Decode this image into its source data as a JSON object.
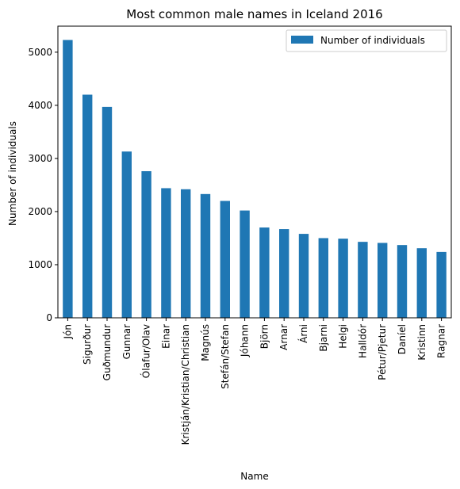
{
  "chart_data": {
    "type": "bar",
    "title": "Most common male names in Iceland 2016",
    "xlabel": "Name",
    "ylabel": "Number of individuals",
    "categories": [
      "Jón",
      "Sigurður",
      "Guðmundur",
      "Gunnar",
      "Ólafur/Olav",
      "Einar",
      "Kristján/Kristian/Christian",
      "Magnús",
      "Stefán/Stefan",
      "Jóhann",
      "Björn",
      "Arnar",
      "Árni",
      "Bjarni",
      "Helgi",
      "Halldór",
      "Pétur/Pjetur",
      "Daníel",
      "Kristinn",
      "Ragnar"
    ],
    "series": [
      {
        "name": "Number of individuals",
        "color": "#1f77b4",
        "values": [
          5230,
          4200,
          3970,
          3130,
          2760,
          2440,
          2420,
          2330,
          2200,
          2020,
          1700,
          1670,
          1580,
          1500,
          1490,
          1430,
          1410,
          1370,
          1310,
          1240
        ]
      }
    ],
    "ylim": [
      0,
      5490
    ],
    "yticks": [
      0,
      1000,
      2000,
      3000,
      4000,
      5000
    ],
    "legend": "top-right",
    "grid": false
  }
}
